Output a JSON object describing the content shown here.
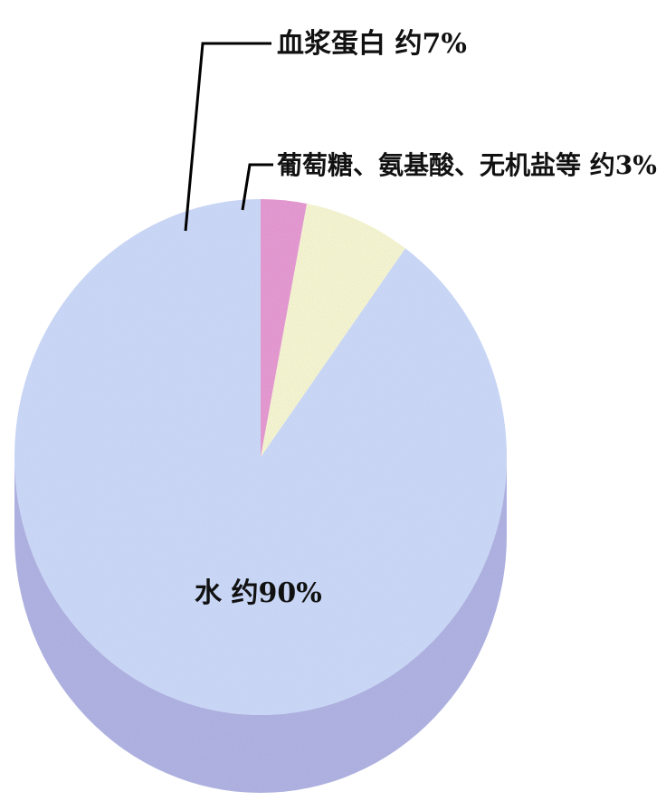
{
  "chart_data": {
    "type": "pie",
    "style": "3d",
    "title": "",
    "slices": [
      {
        "label": "水 约90%",
        "value": 90,
        "color": "#c9d9f6",
        "side_color": "#a7abdc"
      },
      {
        "label": "血浆蛋白 约7%",
        "value": 7,
        "color": "#fbfbc6",
        "side_color": "#d8d8a6"
      },
      {
        "label": "葡萄糖、氨基酸、无机盐等 约3%",
        "value": 3,
        "color": "#e889c6",
        "side_color": "#c06aa2"
      }
    ],
    "start_angle_deg": 0,
    "direction": "counterclockwise"
  }
}
